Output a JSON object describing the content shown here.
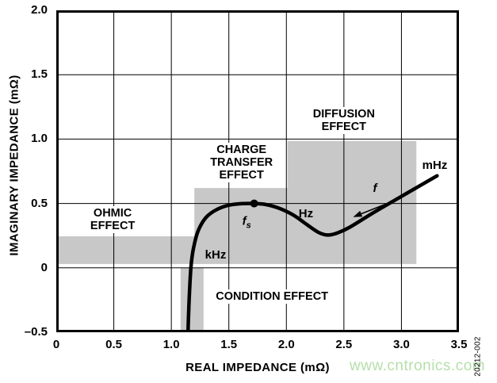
{
  "page": {
    "watermark": "www.cntronics.com",
    "figure_number": "20212-002"
  },
  "colors": {
    "region_gray": "#c8c8c8",
    "curve_black": "#000000",
    "grid_black": "#000000",
    "watermark_green": "#b5dfaa",
    "background": "#ffffff"
  },
  "chart_data": {
    "type": "line",
    "title": "",
    "xlabel": "REAL IMPEDANCE (mΩ)",
    "ylabel": "IMAGINARY IMPEDANCE (mΩ)",
    "xlim": [
      0,
      3.5
    ],
    "ylim": [
      -0.5,
      2.0
    ],
    "grid": true,
    "x_tick_values": [
      0,
      0.5,
      1.0,
      1.5,
      2.0,
      2.5,
      3.0,
      3.5
    ],
    "x_tick_labels": [
      "0",
      "0.5",
      "1.0",
      "1.5",
      "2.0",
      "2.5",
      "3.0",
      "3.5"
    ],
    "y_tick_values": [
      2.0,
      1.5,
      1.0,
      0.5,
      0,
      -0.5
    ],
    "y_tick_labels": [
      "2.0",
      "1.5",
      "1.0",
      "0.5",
      "0",
      "–0.5"
    ],
    "grid_x_values": [
      0.5,
      1.0,
      1.5,
      2.0,
      2.5,
      3.0
    ],
    "grid_y_values": [
      0,
      0.5,
      1.0,
      1.5
    ],
    "regions": [
      {
        "id": "ohmic-effect",
        "rect": {
          "x0": 0.0,
          "y0": 0.03,
          "x1": 1.22,
          "y1": 0.245
        },
        "label_lines": [
          "OHMIC",
          "EFFECT"
        ],
        "label_pos": {
          "x": 0.49,
          "y": 0.375
        }
      },
      {
        "id": "charge-transfer-effect",
        "rect": {
          "x0": 1.2,
          "y0": 0.03,
          "x1": 2.01,
          "y1": 0.62
        },
        "label_lines": [
          "CHARGE",
          "TRANSFER",
          "EFFECT"
        ],
        "label_pos": {
          "x": 1.61,
          "y": 0.82
        }
      },
      {
        "id": "diffusion-effect",
        "rect": {
          "x0": 2.01,
          "y0": 0.03,
          "x1": 3.13,
          "y1": 0.985
        },
        "label_lines": [
          "DIFFUSION",
          "EFFECT"
        ],
        "label_pos": {
          "x": 2.5,
          "y": 1.145
        }
      },
      {
        "id": "condition-effect",
        "rect": {
          "x0": 1.08,
          "y0": -0.5,
          "x1": 1.28,
          "y1": 0.0
        },
        "label_lines": [
          "CONDITION EFFECT"
        ],
        "label_pos": {
          "x": 1.875,
          "y": -0.225
        }
      }
    ],
    "series": [
      {
        "name": "impedance-spectrum-curve",
        "points": [
          [
            1.145,
            -0.5
          ],
          [
            1.155,
            -0.25
          ],
          [
            1.17,
            0.0
          ],
          [
            1.19,
            0.14
          ],
          [
            1.23,
            0.28
          ],
          [
            1.3,
            0.39
          ],
          [
            1.4,
            0.455
          ],
          [
            1.52,
            0.49
          ],
          [
            1.66,
            0.5
          ],
          [
            1.8,
            0.495
          ],
          [
            1.93,
            0.465
          ],
          [
            2.06,
            0.41
          ],
          [
            2.18,
            0.335
          ],
          [
            2.28,
            0.275
          ],
          [
            2.36,
            0.255
          ],
          [
            2.44,
            0.27
          ],
          [
            2.55,
            0.315
          ],
          [
            2.75,
            0.425
          ],
          [
            3.0,
            0.555
          ],
          [
            3.31,
            0.715
          ]
        ]
      }
    ],
    "marker": {
      "id": "fs-point",
      "x": 1.72,
      "y": 0.5,
      "radius_px": 5
    },
    "annotations": [
      {
        "id": "khz-label",
        "text": "kHz",
        "x": 1.385,
        "y": 0.1,
        "italic": false
      },
      {
        "id": "hz-label",
        "text": "Hz",
        "x": 2.17,
        "y": 0.42,
        "italic": false
      },
      {
        "id": "mhz-label",
        "text": "mHz",
        "x": 3.29,
        "y": 0.795,
        "italic": false
      },
      {
        "id": "f-label",
        "text": "f",
        "x": 2.77,
        "y": 0.615,
        "italic": true
      },
      {
        "id": "fs-label",
        "text": "f",
        "sub": "s",
        "x": 1.655,
        "y": 0.345,
        "italic": true
      }
    ],
    "arrow": {
      "id": "frequency-direction-arrow",
      "tail": {
        "x": 2.92,
        "y": 0.515
      },
      "head": {
        "x": 2.58,
        "y": 0.395
      }
    }
  }
}
